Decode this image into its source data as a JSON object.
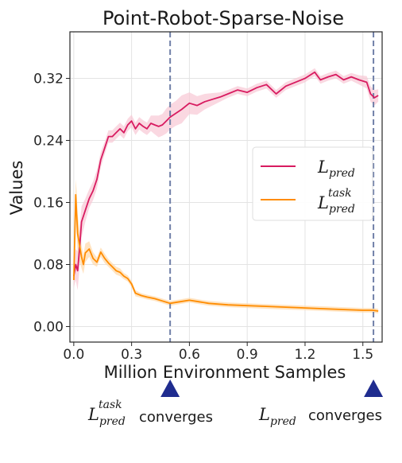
{
  "chart_data": {
    "type": "line",
    "title": "Point-Robot-Sparse-Noise",
    "xlabel": "Million Environment Samples",
    "ylabel": "Values",
    "xlim": [
      -0.02,
      1.6
    ],
    "ylim": [
      -0.02,
      0.38
    ],
    "xticks": [
      "0.0",
      "0.3",
      "0.6",
      "0.9",
      "1.2",
      "1.5"
    ],
    "xtick_values": [
      0.0,
      0.3,
      0.6,
      0.9,
      1.2,
      1.5
    ],
    "yticks": [
      "0.00",
      "0.08",
      "0.16",
      "0.24",
      "0.32"
    ],
    "ytick_values": [
      0.0,
      0.08,
      0.16,
      0.24,
      0.32
    ],
    "grid": true,
    "legend_position": "center-right",
    "series": [
      {
        "name": "L_pred",
        "color": "#d81b60",
        "band_color": "#f8c8d4",
        "x": [
          0.0,
          0.01,
          0.02,
          0.03,
          0.04,
          0.06,
          0.08,
          0.1,
          0.12,
          0.14,
          0.16,
          0.18,
          0.2,
          0.22,
          0.24,
          0.26,
          0.28,
          0.3,
          0.32,
          0.34,
          0.36,
          0.38,
          0.4,
          0.42,
          0.44,
          0.46,
          0.48,
          0.5,
          0.53,
          0.56,
          0.6,
          0.64,
          0.68,
          0.72,
          0.76,
          0.8,
          0.85,
          0.9,
          0.95,
          1.0,
          1.05,
          1.1,
          1.15,
          1.2,
          1.25,
          1.28,
          1.32,
          1.36,
          1.4,
          1.44,
          1.48,
          1.52,
          1.54,
          1.56,
          1.58
        ],
        "y": [
          0.065,
          0.08,
          0.072,
          0.1,
          0.135,
          0.15,
          0.165,
          0.175,
          0.19,
          0.215,
          0.23,
          0.245,
          0.245,
          0.25,
          0.255,
          0.25,
          0.26,
          0.265,
          0.255,
          0.262,
          0.258,
          0.255,
          0.262,
          0.26,
          0.258,
          0.26,
          0.265,
          0.27,
          0.275,
          0.28,
          0.288,
          0.285,
          0.29,
          0.293,
          0.296,
          0.3,
          0.305,
          0.302,
          0.308,
          0.312,
          0.3,
          0.31,
          0.315,
          0.32,
          0.328,
          0.318,
          0.322,
          0.325,
          0.318,
          0.322,
          0.318,
          0.315,
          0.3,
          0.295,
          0.298
        ],
        "band": [
          0.015,
          0.02,
          0.025,
          0.025,
          0.02,
          0.015,
          0.012,
          0.012,
          0.012,
          0.01,
          0.008,
          0.008,
          0.008,
          0.008,
          0.008,
          0.008,
          0.008,
          0.008,
          0.008,
          0.008,
          0.008,
          0.008,
          0.01,
          0.012,
          0.014,
          0.014,
          0.016,
          0.016,
          0.016,
          0.018,
          0.014,
          0.012,
          0.01,
          0.008,
          0.006,
          0.005,
          0.005,
          0.005,
          0.005,
          0.005,
          0.005,
          0.005,
          0.005,
          0.005,
          0.005,
          0.005,
          0.005,
          0.005,
          0.005,
          0.005,
          0.006,
          0.008,
          0.01,
          0.01,
          0.008
        ]
      },
      {
        "name": "L_pred^task",
        "color": "#ff8c00",
        "band_color": "#ffd8a8",
        "x": [
          0.0,
          0.01,
          0.015,
          0.02,
          0.03,
          0.04,
          0.05,
          0.06,
          0.08,
          0.1,
          0.12,
          0.14,
          0.16,
          0.18,
          0.2,
          0.22,
          0.24,
          0.26,
          0.28,
          0.3,
          0.32,
          0.35,
          0.38,
          0.42,
          0.46,
          0.5,
          0.55,
          0.6,
          0.65,
          0.7,
          0.8,
          0.9,
          1.0,
          1.1,
          1.2,
          1.3,
          1.4,
          1.5,
          1.55,
          1.58
        ],
        "y": [
          0.06,
          0.17,
          0.145,
          0.12,
          0.105,
          0.09,
          0.08,
          0.095,
          0.1,
          0.088,
          0.083,
          0.096,
          0.088,
          0.082,
          0.077,
          0.072,
          0.07,
          0.065,
          0.062,
          0.055,
          0.043,
          0.04,
          0.038,
          0.036,
          0.033,
          0.03,
          0.032,
          0.034,
          0.032,
          0.03,
          0.028,
          0.027,
          0.026,
          0.025,
          0.024,
          0.023,
          0.022,
          0.021,
          0.021,
          0.02
        ],
        "band": [
          0.01,
          0.02,
          0.03,
          0.025,
          0.02,
          0.015,
          0.012,
          0.012,
          0.01,
          0.008,
          0.006,
          0.006,
          0.006,
          0.005,
          0.005,
          0.005,
          0.005,
          0.004,
          0.004,
          0.004,
          0.004,
          0.003,
          0.003,
          0.003,
          0.003,
          0.003,
          0.003,
          0.003,
          0.003,
          0.003,
          0.003,
          0.003,
          0.003,
          0.003,
          0.003,
          0.003,
          0.003,
          0.003,
          0.003,
          0.003
        ]
      }
    ],
    "vlines": [
      {
        "x": 0.5,
        "color": "#7080a8"
      },
      {
        "x": 1.555,
        "color": "#7080a8"
      }
    ],
    "markers": [
      {
        "x": 0.5,
        "color": "#1f2c8f"
      },
      {
        "x": 1.555,
        "color": "#1f2c8f"
      }
    ]
  },
  "legend": {
    "entries": [
      {
        "base": "L",
        "sub": "pred",
        "sup": ""
      },
      {
        "base": "L",
        "sub": "pred",
        "sup": "task"
      }
    ]
  },
  "annotations": {
    "left": {
      "base": "L",
      "sub": "pred",
      "sup": "task",
      "text": "converges"
    },
    "right": {
      "base": "L",
      "sub": "pred",
      "sup": "",
      "text": "converges"
    }
  }
}
